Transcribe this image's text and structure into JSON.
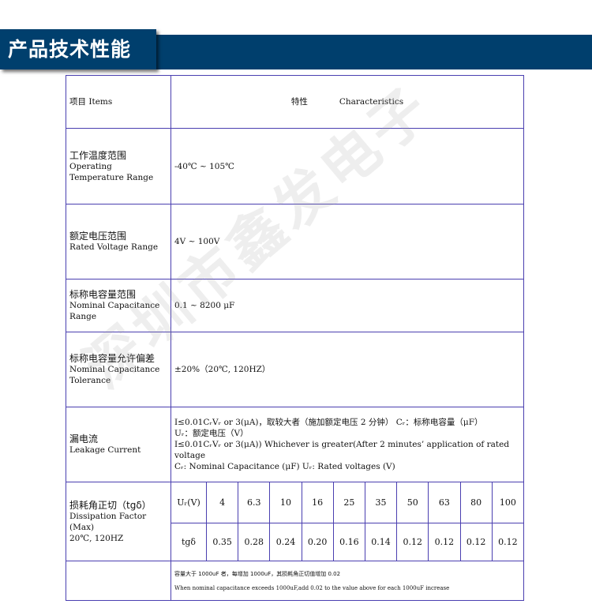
{
  "header": {
    "title": "产品技术性能"
  },
  "watermark": "深圳市鑫发电子",
  "table": {
    "head": {
      "item": "项目  Items",
      "char_cn": "特性",
      "char_en": "Characteristics"
    },
    "rows": [
      {
        "cn": "工作温度范围",
        "en": "Operating Temperature Range",
        "value": "-40℃ ~ 105℃"
      },
      {
        "cn": "额定电压范围",
        "en": "Rated Voltage Range",
        "value": "4V ~ 100V"
      },
      {
        "cn": "标称电容量范围",
        "en": "Nominal  Capacitance Range",
        "value": "0.1 ~ 8200 μF"
      },
      {
        "cn": "标称电容量允许偏差",
        "en": "Nominal   Capacitance Tolerance",
        "value": "±20%（20℃, 120HZ）"
      }
    ],
    "leakage": {
      "cn": "漏电流",
      "en": "Leakage Current",
      "lines": [
        "I≤0.01CᵣVᵣ or 3(μA)，取较大者（施加额定电压 2 分钟） Cᵣ：标称电容量（μF）",
        "Uᵣ：额定电压（V）",
        "I≤0.01CᵣVᵣ or 3(μA)) Whichever is greater(After 2 minutes’  application of rated voltage",
        "Cᵣ: Nominal Capacitance (μF)    Uᵣ: Rated voltages (V)"
      ]
    },
    "dissipation": {
      "cn": "损耗角正切（tgδ）",
      "en": "Dissipation   Factor (Max)",
      "cond": "20℃, 120HZ",
      "ur_label": "Uᵣ(V)",
      "tg_label": "tgδ",
      "voltages": [
        "4",
        "6.3",
        "10",
        "16",
        "25",
        "35",
        "50",
        "63",
        "80",
        "100"
      ],
      "tg": [
        "0.35",
        "0.28",
        "0.24",
        "0.20",
        "0.16",
        "0.14",
        "0.12",
        "0.12",
        "0.12",
        "0.12"
      ],
      "note_cn": "容量大于 1000uF 者，每增加 1000uF，其损耗角正切值增加 0.02",
      "note_en": "When nominal capacitance exceeds 1000uF,add 0.02 to the value above for each 1000uF  increase"
    }
  }
}
